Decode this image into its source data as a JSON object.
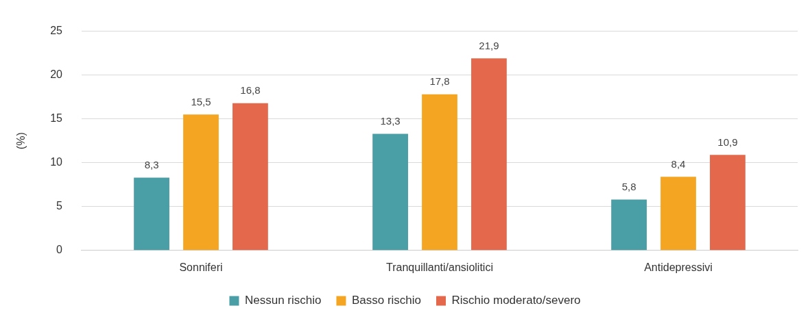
{
  "chart_data": {
    "type": "bar",
    "ylabel": "(%)",
    "categories": [
      "Sonniferi",
      "Tranquillanti/ansiolitici",
      "Antidepressivi"
    ],
    "series": [
      {
        "name": "Nessun rischio",
        "color": "#4a9ea6",
        "values": [
          8.3,
          13.3,
          5.8
        ],
        "value_labels": [
          "8,3",
          "13,3",
          "5,8"
        ]
      },
      {
        "name": "Basso rischio",
        "color": "#f4a623",
        "values": [
          15.5,
          17.8,
          8.4
        ],
        "value_labels": [
          "15,5",
          "17,8",
          "8,4"
        ]
      },
      {
        "name": "Rischio moderato/severo",
        "color": "#e4694c",
        "values": [
          16.8,
          21.9,
          10.9
        ],
        "value_labels": [
          "16,8",
          "21,9",
          "10,9"
        ]
      }
    ],
    "ylim": [
      0,
      25
    ],
    "yticks": [
      0,
      5,
      10,
      15,
      20,
      25
    ],
    "grid": "y",
    "legend": "bottom"
  }
}
